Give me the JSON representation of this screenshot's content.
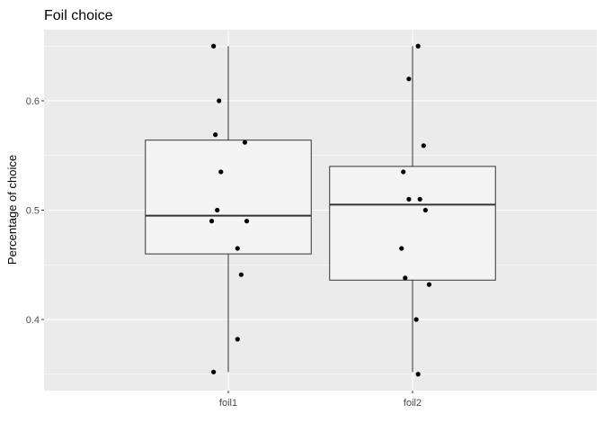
{
  "chart_data": {
    "type": "boxplot",
    "title": "Foil choice",
    "xlabel": "",
    "ylabel": "Percentage of choice",
    "categories": [
      "foil1",
      "foil2"
    ],
    "ylim": [
      0.335,
      0.665
    ],
    "yticks": [
      0.4,
      0.5,
      0.6
    ],
    "ytick_labels": [
      "0.4",
      "0.5",
      "0.6"
    ],
    "grid": true,
    "legend": "none",
    "boxes": [
      {
        "category": "foil1",
        "min": 0.352,
        "q1": 0.46,
        "median": 0.495,
        "q3": 0.564,
        "max": 0.65
      },
      {
        "category": "foil2",
        "min": 0.352,
        "q1": 0.436,
        "median": 0.505,
        "q3": 0.54,
        "max": 0.65
      }
    ],
    "points": [
      {
        "category": "foil1",
        "jitter": -0.08,
        "y": 0.65
      },
      {
        "category": "foil1",
        "jitter": -0.05,
        "y": 0.6
      },
      {
        "category": "foil1",
        "jitter": -0.07,
        "y": 0.569
      },
      {
        "category": "foil1",
        "jitter": 0.09,
        "y": 0.562
      },
      {
        "category": "foil1",
        "jitter": -0.04,
        "y": 0.535
      },
      {
        "category": "foil1",
        "jitter": -0.06,
        "y": 0.5
      },
      {
        "category": "foil1",
        "jitter": -0.09,
        "y": 0.49
      },
      {
        "category": "foil1",
        "jitter": 0.1,
        "y": 0.49
      },
      {
        "category": "foil1",
        "jitter": 0.05,
        "y": 0.465
      },
      {
        "category": "foil1",
        "jitter": 0.07,
        "y": 0.441
      },
      {
        "category": "foil1",
        "jitter": 0.05,
        "y": 0.382
      },
      {
        "category": "foil1",
        "jitter": -0.08,
        "y": 0.352
      },
      {
        "category": "foil2",
        "jitter": 0.03,
        "y": 0.65
      },
      {
        "category": "foil2",
        "jitter": -0.02,
        "y": 0.62
      },
      {
        "category": "foil2",
        "jitter": 0.06,
        "y": 0.559
      },
      {
        "category": "foil2",
        "jitter": -0.05,
        "y": 0.535
      },
      {
        "category": "foil2",
        "jitter": -0.02,
        "y": 0.51
      },
      {
        "category": "foil2",
        "jitter": 0.04,
        "y": 0.51
      },
      {
        "category": "foil2",
        "jitter": 0.07,
        "y": 0.5
      },
      {
        "category": "foil2",
        "jitter": -0.06,
        "y": 0.465
      },
      {
        "category": "foil2",
        "jitter": -0.04,
        "y": 0.438
      },
      {
        "category": "foil2",
        "jitter": 0.09,
        "y": 0.432
      },
      {
        "category": "foil2",
        "jitter": 0.02,
        "y": 0.4
      },
      {
        "category": "foil2",
        "jitter": 0.03,
        "y": 0.35
      }
    ]
  },
  "colors": {
    "panel_background": "#ebebeb",
    "grid_major": "#ffffff",
    "box_fill": "#f4f4f4",
    "box_stroke": "#333333",
    "point": "#000000"
  }
}
